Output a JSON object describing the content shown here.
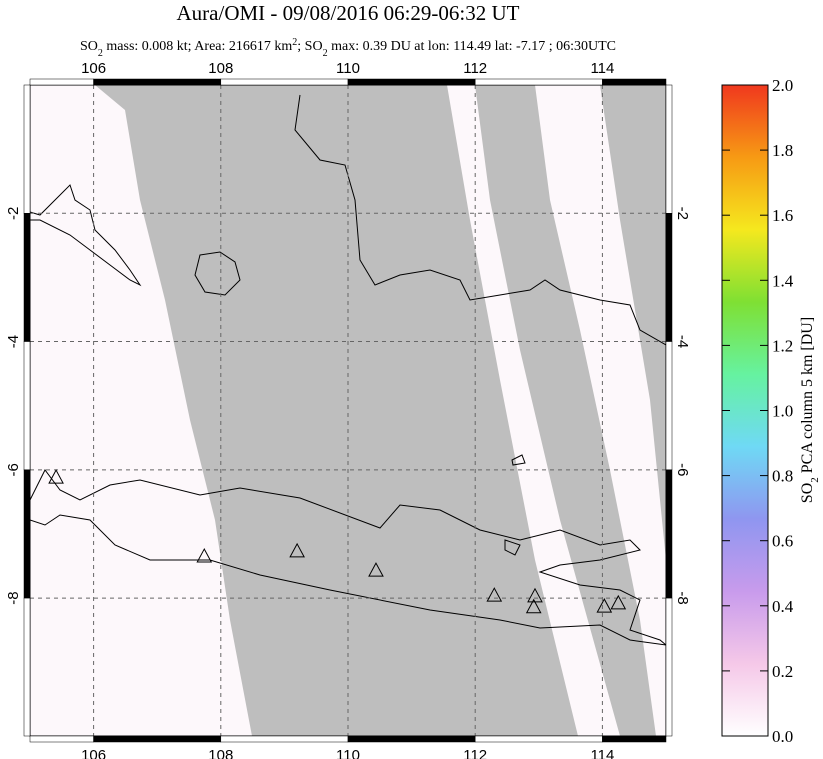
{
  "chart_data": {
    "type": "map",
    "title": "Aura/OMI - 09/08/2016 06:29-06:32 UT",
    "subtitle_parts": [
      "SO",
      "2",
      " mass: 0.008 kt; Area: 216617 km",
      "2",
      "; SO",
      "2",
      " max: 0.39 DU at lon: 114.49 lat: -7.17 ; 06:30UTC"
    ],
    "xlim": [
      105,
      115
    ],
    "ylim": [
      0,
      -10.15
    ],
    "xticks": [
      106,
      108,
      110,
      112,
      114
    ],
    "yticks": [
      -2,
      -4,
      -6,
      -8
    ],
    "grid": true,
    "volcanoes": {
      "lon": [
        105.41,
        107.74,
        109.2,
        110.44,
        112.3,
        112.94,
        112.92,
        114.03,
        114.25
      ],
      "lat": [
        -6.13,
        -7.36,
        -7.28,
        -7.58,
        -7.97,
        -7.98,
        -8.15,
        -8.14,
        -8.09
      ]
    },
    "colorbar": {
      "label_parts": [
        "SO",
        "2",
        " PCA column 5 km [DU]"
      ],
      "lim": [
        0,
        2
      ],
      "ticks": [
        {
          "value": 0,
          "label": "0.0"
        },
        0.2,
        0.4,
        0.6,
        0.8,
        {
          "value": 1,
          "label": "1.0"
        },
        1.2,
        1.4,
        1.6,
        1.8,
        {
          "value": 2,
          "label": "2.0"
        }
      ],
      "colors": [
        "#ffffff",
        "#f5c8e8",
        "#c89bec",
        "#8f96f0",
        "#6fd9f5",
        "#66f2a0",
        "#7fe033",
        "#f5e81e",
        "#f79a14",
        "#f0381e"
      ]
    }
  }
}
